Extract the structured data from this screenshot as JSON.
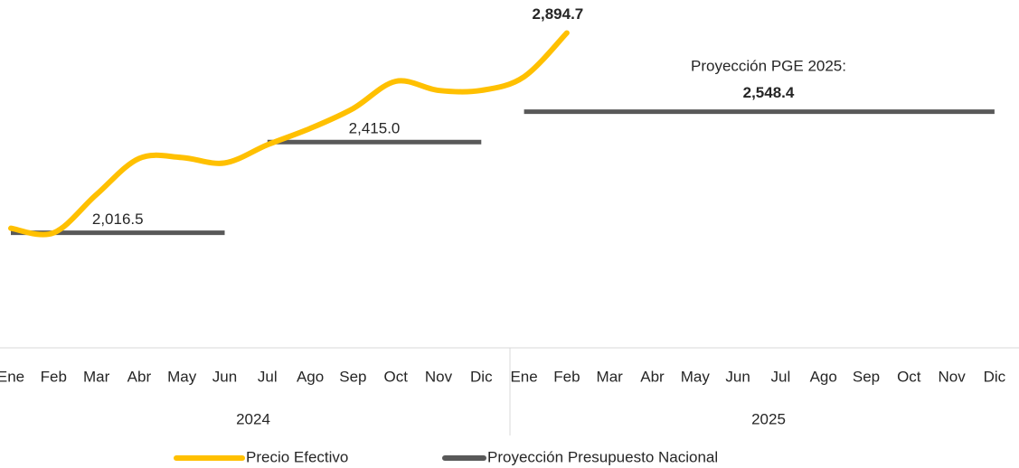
{
  "chart_data": {
    "type": "line",
    "categories": [
      "Ene",
      "Feb",
      "Mar",
      "Abr",
      "May",
      "Jun",
      "Jul",
      "Ago",
      "Sep",
      "Oct",
      "Nov",
      "Dic",
      "Ene",
      "Feb",
      "Mar",
      "Abr",
      "May",
      "Jun",
      "Jul",
      "Ago",
      "Sep",
      "Oct",
      "Nov",
      "Dic"
    ],
    "years": [
      "2024",
      "2025"
    ],
    "ylim": [
      1570,
      2960
    ],
    "annotation": "Proyección PGE 2025:",
    "series": [
      {
        "name": "Precio Efectivo",
        "color": "#ffc000",
        "values": [
          2036,
          2016,
          2184,
          2343,
          2347,
          2323,
          2403,
          2475,
          2562,
          2682,
          2642,
          2642,
          2702,
          2894.7,
          null,
          null,
          null,
          null,
          null,
          null,
          null,
          null,
          null,
          null
        ],
        "value_labels": [
          null,
          null,
          null,
          null,
          null,
          null,
          null,
          null,
          null,
          null,
          null,
          null,
          null,
          "2,894.7",
          null,
          null,
          null,
          null,
          null,
          null,
          null,
          null,
          null,
          null
        ]
      },
      {
        "name": "Proyección Presupuesto Nacional",
        "color": "#595959",
        "values": [
          2016.5,
          2016.5,
          2016.5,
          2016.5,
          2016.5,
          2016.5,
          2415.0,
          2415.0,
          2415.0,
          2415.0,
          2415.0,
          2415.0,
          2548.4,
          2548.4,
          2548.4,
          2548.4,
          2548.4,
          2548.4,
          2548.4,
          2548.4,
          2548.4,
          2548.4,
          2548.4,
          2548.4
        ],
        "value_labels": [
          "2,016.5",
          null,
          null,
          null,
          null,
          null,
          "2,415.0",
          null,
          null,
          null,
          null,
          null,
          "2,548.4",
          null,
          null,
          null,
          null,
          null,
          null,
          null,
          null,
          null,
          null,
          null
        ]
      }
    ]
  }
}
